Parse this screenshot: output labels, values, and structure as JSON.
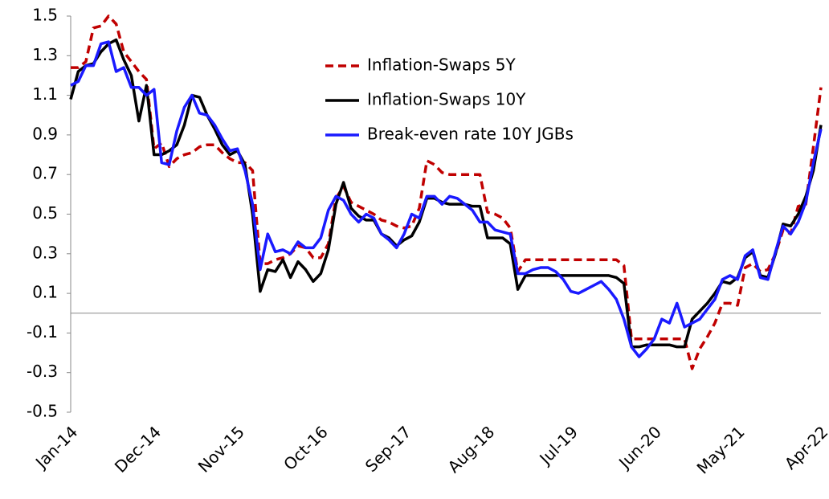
{
  "chart_data": {
    "type": "line",
    "categories": [
      "Jan-14",
      null,
      null,
      null,
      null,
      null,
      null,
      null,
      null,
      null,
      null,
      "Dec-14",
      null,
      null,
      null,
      null,
      null,
      null,
      null,
      null,
      null,
      null,
      "Nov-15",
      null,
      null,
      null,
      null,
      null,
      null,
      null,
      null,
      null,
      null,
      "Oct-16",
      null,
      null,
      null,
      null,
      null,
      null,
      null,
      null,
      null,
      null,
      "Sep-17",
      null,
      null,
      null,
      null,
      null,
      null,
      null,
      null,
      null,
      null,
      "Aug-18",
      null,
      null,
      null,
      null,
      null,
      null,
      null,
      null,
      null,
      null,
      "Jul-19",
      null,
      null,
      null,
      null,
      null,
      null,
      null,
      null,
      null,
      null,
      "Jun-20",
      null,
      null,
      null,
      null,
      null,
      null,
      null,
      null,
      null,
      null,
      "May-21",
      null,
      null,
      null,
      null,
      null,
      null,
      null,
      null,
      null,
      null,
      "Apr-22"
    ],
    "series": [
      {
        "name": "Inflation-Swaps 5Y",
        "color": "#c00000",
        "style": "dashed",
        "values": [
          1.24,
          1.24,
          1.27,
          1.44,
          1.45,
          1.5,
          1.46,
          1.32,
          1.27,
          1.22,
          1.18,
          0.83,
          0.86,
          0.74,
          0.78,
          0.8,
          0.81,
          0.84,
          0.85,
          0.85,
          0.81,
          0.78,
          0.76,
          0.76,
          0.72,
          0.25,
          0.25,
          0.27,
          0.28,
          0.3,
          0.34,
          0.33,
          0.28,
          0.28,
          0.35,
          0.58,
          0.64,
          0.56,
          0.54,
          0.52,
          0.5,
          0.47,
          0.46,
          0.44,
          0.43,
          0.44,
          0.53,
          0.77,
          0.75,
          0.71,
          0.7,
          0.7,
          0.7,
          0.7,
          0.7,
          0.51,
          0.5,
          0.48,
          0.43,
          0.21,
          0.27,
          0.27,
          0.27,
          0.27,
          0.27,
          0.27,
          0.27,
          0.27,
          0.27,
          0.27,
          0.27,
          0.27,
          0.27,
          0.24,
          -0.13,
          -0.13,
          -0.13,
          -0.13,
          -0.13,
          -0.13,
          -0.13,
          -0.13,
          -0.28,
          -0.18,
          -0.12,
          -0.05,
          0.05,
          0.05,
          0.04,
          0.23,
          0.25,
          0.21,
          0.22,
          0.3,
          0.42,
          0.4,
          0.54,
          0.55,
          0.84,
          1.14
        ]
      },
      {
        "name": "Inflation-Swaps 10Y",
        "color": "#000000",
        "style": "solid",
        "values": [
          1.08,
          1.22,
          1.25,
          1.26,
          1.32,
          1.36,
          1.38,
          1.28,
          1.2,
          0.97,
          1.15,
          0.8,
          0.8,
          0.82,
          0.85,
          0.95,
          1.1,
          1.09,
          1.0,
          0.93,
          0.85,
          0.8,
          0.82,
          0.75,
          0.5,
          0.11,
          0.22,
          0.21,
          0.27,
          0.18,
          0.26,
          0.22,
          0.16,
          0.2,
          0.32,
          0.55,
          0.66,
          0.53,
          0.49,
          0.47,
          0.47,
          0.4,
          0.38,
          0.34,
          0.37,
          0.39,
          0.46,
          0.58,
          0.58,
          0.56,
          0.55,
          0.55,
          0.55,
          0.54,
          0.54,
          0.38,
          0.38,
          0.38,
          0.35,
          0.12,
          0.19,
          0.19,
          0.19,
          0.19,
          0.19,
          0.19,
          0.19,
          0.19,
          0.19,
          0.19,
          0.19,
          0.19,
          0.18,
          0.15,
          -0.17,
          -0.17,
          -0.16,
          -0.16,
          -0.16,
          -0.16,
          -0.17,
          -0.17,
          -0.03,
          0.01,
          0.05,
          0.1,
          0.16,
          0.15,
          0.18,
          0.28,
          0.31,
          0.19,
          0.18,
          0.3,
          0.45,
          0.44,
          0.5,
          0.59,
          0.72,
          0.95
        ]
      },
      {
        "name": "Break-even rate 10Y JGBs",
        "color": "#1a1aff",
        "style": "solid",
        "values": [
          1.15,
          1.17,
          1.25,
          1.25,
          1.36,
          1.37,
          1.22,
          1.24,
          1.14,
          1.14,
          1.1,
          1.13,
          0.76,
          0.75,
          0.92,
          1.04,
          1.1,
          1.01,
          1.0,
          0.95,
          0.88,
          0.82,
          0.83,
          0.72,
          0.55,
          0.22,
          0.4,
          0.31,
          0.32,
          0.3,
          0.36,
          0.33,
          0.33,
          0.38,
          0.52,
          0.59,
          0.57,
          0.5,
          0.46,
          0.5,
          0.48,
          0.4,
          0.37,
          0.33,
          0.4,
          0.5,
          0.48,
          0.59,
          0.59,
          0.55,
          0.59,
          0.58,
          0.55,
          0.52,
          0.46,
          0.46,
          0.42,
          0.41,
          0.4,
          0.2,
          0.2,
          0.22,
          0.23,
          0.23,
          0.21,
          0.17,
          0.11,
          0.1,
          0.12,
          0.14,
          0.16,
          0.12,
          0.07,
          -0.03,
          -0.17,
          -0.22,
          -0.18,
          -0.13,
          -0.03,
          -0.05,
          0.05,
          -0.07,
          -0.05,
          -0.03,
          0.02,
          0.07,
          0.17,
          0.19,
          0.17,
          0.29,
          0.32,
          0.18,
          0.17,
          0.31,
          0.44,
          0.4,
          0.46,
          0.56,
          0.76,
          0.93
        ]
      }
    ],
    "ylim": [
      -0.5,
      1.5
    ],
    "yticks": [
      -0.5,
      -0.3,
      -0.1,
      0.1,
      0.3,
      0.5,
      0.7,
      0.9,
      1.1,
      1.3,
      1.5
    ],
    "grid": false,
    "legend": "top-center"
  }
}
